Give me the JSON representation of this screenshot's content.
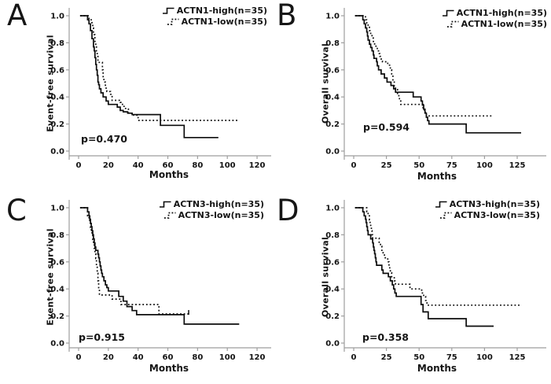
{
  "style": {
    "background": "#ffffff",
    "curve_color": "#0d0d0d",
    "axis_color": "#9e9e9e",
    "text_color": "#141414"
  },
  "chart_data": [
    {
      "panel": "A",
      "type": "line",
      "subtype": "kaplan-meier-step",
      "xlabel": "Months",
      "ylabel": "Event-free survival",
      "p_label": "p=0.470",
      "xlim": [
        0,
        120
      ],
      "ylim": [
        0.0,
        1.0
      ],
      "xticks": [
        0,
        20,
        40,
        60,
        80,
        100,
        120
      ],
      "ytick_labels": [
        "1.0",
        "0.8",
        "0.6",
        "0.4",
        "0.2",
        "0.0"
      ],
      "grid": false,
      "legend_position": "top-right",
      "series": [
        {
          "name": "ACTN1-high(n=35)",
          "line": "solid",
          "end": 94,
          "censors": [],
          "steps": [
            [
              1,
              1.0
            ],
            [
              6,
              0.97
            ],
            [
              7,
              0.94
            ],
            [
              8,
              0.89
            ],
            [
              9,
              0.83
            ],
            [
              10,
              0.77
            ],
            [
              10.5,
              0.74
            ],
            [
              11,
              0.69
            ],
            [
              11.5,
              0.64
            ],
            [
              12,
              0.6
            ],
            [
              12.5,
              0.56
            ],
            [
              13,
              0.51
            ],
            [
              13.5,
              0.49
            ],
            [
              14,
              0.46
            ],
            [
              15,
              0.43
            ],
            [
              16.5,
              0.4
            ],
            [
              18.5,
              0.37
            ],
            [
              20,
              0.345
            ],
            [
              26,
              0.325
            ],
            [
              28,
              0.3
            ],
            [
              30,
              0.29
            ],
            [
              33,
              0.28
            ],
            [
              36,
              0.27
            ],
            [
              55,
              0.19
            ],
            [
              71,
              0.1
            ]
          ]
        },
        {
          "name": "ACTN1-low(n=35)",
          "line": "dotted",
          "end": 108,
          "censors": [],
          "steps": [
            [
              1,
              1.0
            ],
            [
              7,
              0.97
            ],
            [
              9,
              0.94
            ],
            [
              9.5,
              0.91
            ],
            [
              10,
              0.86
            ],
            [
              11,
              0.8
            ],
            [
              11.5,
              0.77
            ],
            [
              12,
              0.74
            ],
            [
              12.5,
              0.71
            ],
            [
              13,
              0.655
            ],
            [
              16,
              0.6
            ],
            [
              16.5,
              0.55
            ],
            [
              17,
              0.51
            ],
            [
              18,
              0.48
            ],
            [
              18.5,
              0.455
            ],
            [
              19,
              0.44
            ],
            [
              21.5,
              0.42
            ],
            [
              22.5,
              0.375
            ],
            [
              28,
              0.36
            ],
            [
              29.5,
              0.33
            ],
            [
              31,
              0.315
            ],
            [
              33.5,
              0.28
            ],
            [
              37,
              0.265
            ],
            [
              40,
              0.227
            ]
          ]
        }
      ]
    },
    {
      "panel": "B",
      "type": "line",
      "subtype": "kaplan-meier-step",
      "xlabel": "Months",
      "ylabel": "Overall survival",
      "p_label": "p=0.594",
      "xlim": [
        0,
        125
      ],
      "ylim": [
        0.0,
        1.0
      ],
      "xticks": [
        0,
        25,
        50,
        75,
        100,
        125
      ],
      "ytick_labels": [
        "1.0",
        "0.8",
        "0.6",
        "0.4",
        "0.2",
        "0.0"
      ],
      "grid": false,
      "legend_position": "top-right",
      "series": [
        {
          "name": "ACTN1-high(n=35)",
          "line": "solid",
          "end": 128,
          "censors": [],
          "steps": [
            [
              1,
              1.0
            ],
            [
              7,
              0.97
            ],
            [
              8,
              0.94
            ],
            [
              9,
              0.91
            ],
            [
              10,
              0.88
            ],
            [
              10.5,
              0.85
            ],
            [
              11,
              0.82
            ],
            [
              12,
              0.79
            ],
            [
              13,
              0.765
            ],
            [
              14,
              0.74
            ],
            [
              15,
              0.71
            ],
            [
              15.5,
              0.685
            ],
            [
              17.5,
              0.66
            ],
            [
              18,
              0.63
            ],
            [
              19,
              0.6
            ],
            [
              21,
              0.57
            ],
            [
              23.5,
              0.54
            ],
            [
              25.5,
              0.51
            ],
            [
              28.5,
              0.485
            ],
            [
              30.5,
              0.46
            ],
            [
              32,
              0.435
            ],
            [
              45.5,
              0.4
            ],
            [
              51.5,
              0.37
            ],
            [
              52.5,
              0.34
            ],
            [
              53.5,
              0.31
            ],
            [
              54.5,
              0.28
            ],
            [
              55.5,
              0.25
            ],
            [
              56.5,
              0.225
            ],
            [
              57.5,
              0.2
            ],
            [
              86,
              0.135
            ]
          ]
        },
        {
          "name": "ACTN1-low(n=35)",
          "line": "dotted",
          "end": 107,
          "censors": [],
          "steps": [
            [
              1,
              1.0
            ],
            [
              9,
              0.97
            ],
            [
              10,
              0.94
            ],
            [
              11,
              0.915
            ],
            [
              12,
              0.89
            ],
            [
              13,
              0.86
            ],
            [
              14,
              0.835
            ],
            [
              15,
              0.81
            ],
            [
              16,
              0.785
            ],
            [
              17,
              0.765
            ],
            [
              18,
              0.74
            ],
            [
              19,
              0.72
            ],
            [
              20,
              0.7
            ],
            [
              21,
              0.68
            ],
            [
              22,
              0.66
            ],
            [
              26,
              0.635
            ],
            [
              28,
              0.6
            ],
            [
              29,
              0.565
            ],
            [
              30,
              0.52
            ],
            [
              31,
              0.48
            ],
            [
              32,
              0.455
            ],
            [
              33.5,
              0.42
            ],
            [
              34.5,
              0.395
            ],
            [
              35,
              0.37
            ],
            [
              36,
              0.345
            ],
            [
              53,
              0.31
            ],
            [
              54,
              0.285
            ],
            [
              55.5,
              0.26
            ]
          ]
        }
      ]
    },
    {
      "panel": "C",
      "type": "line",
      "subtype": "kaplan-meier-step",
      "xlabel": "Months",
      "ylabel": "Event-free survival",
      "p_label": "p=0.915",
      "xlim": [
        0,
        120
      ],
      "ylim": [
        0.0,
        1.0
      ],
      "xticks": [
        0,
        20,
        40,
        60,
        80,
        100,
        120
      ],
      "ytick_labels": [
        "1.0",
        "0.8",
        "0.6",
        "0.4",
        "0.2",
        "0.0"
      ],
      "grid": false,
      "legend_position": "top-right",
      "series": [
        {
          "name": "ACTN3-high(n=35)",
          "line": "solid",
          "end": 108,
          "censors": [],
          "steps": [
            [
              1,
              1.0
            ],
            [
              6,
              0.97
            ],
            [
              7,
              0.94
            ],
            [
              7.5,
              0.915
            ],
            [
              8,
              0.885
            ],
            [
              8.5,
              0.86
            ],
            [
              9,
              0.83
            ],
            [
              9.5,
              0.8
            ],
            [
              10,
              0.77
            ],
            [
              10.5,
              0.74
            ],
            [
              11,
              0.71
            ],
            [
              11.5,
              0.685
            ],
            [
              13,
              0.657
            ],
            [
              13.5,
              0.63
            ],
            [
              14,
              0.6
            ],
            [
              14.5,
              0.57
            ],
            [
              15,
              0.54
            ],
            [
              15.5,
              0.515
            ],
            [
              16,
              0.49
            ],
            [
              17,
              0.46
            ],
            [
              18,
              0.43
            ],
            [
              19,
              0.41
            ],
            [
              20,
              0.385
            ],
            [
              27,
              0.345
            ],
            [
              30,
              0.31
            ],
            [
              32.5,
              0.27
            ],
            [
              36,
              0.24
            ],
            [
              39,
              0.21
            ],
            [
              71,
              0.14
            ]
          ]
        },
        {
          "name": "ACTN3-low(n=35)",
          "line": "dotted",
          "end": 74,
          "censors": [
            [
              74,
              0.215
            ]
          ],
          "steps": [
            [
              1,
              1.0
            ],
            [
              6,
              0.94
            ],
            [
              7,
              0.915
            ],
            [
              7.5,
              0.885
            ],
            [
              8,
              0.855
            ],
            [
              8.5,
              0.825
            ],
            [
              9,
              0.795
            ],
            [
              9.5,
              0.765
            ],
            [
              10,
              0.735
            ],
            [
              10.5,
              0.7
            ],
            [
              11,
              0.66
            ],
            [
              11.5,
              0.625
            ],
            [
              12,
              0.575
            ],
            [
              12.5,
              0.515
            ],
            [
              13,
              0.46
            ],
            [
              13.5,
              0.41
            ],
            [
              14,
              0.355
            ],
            [
              22.5,
              0.325
            ],
            [
              28.5,
              0.285
            ],
            [
              54,
              0.215
            ]
          ]
        }
      ]
    },
    {
      "panel": "D",
      "type": "line",
      "subtype": "kaplan-meier-step",
      "xlabel": "Months",
      "ylabel": "Overall survival",
      "p_label": "p=0.358",
      "xlim": [
        0,
        125
      ],
      "ylim": [
        0.0,
        1.0
      ],
      "xticks": [
        0,
        25,
        50,
        75,
        100,
        125
      ],
      "ytick_labels": [
        "1.0",
        "0.8",
        "0.6",
        "0.4",
        "0.2",
        "0.0"
      ],
      "grid": false,
      "legend_position": "top-right",
      "series": [
        {
          "name": "ACTN3-high(n=35)",
          "line": "solid",
          "end": 107,
          "censors": [],
          "steps": [
            [
              1,
              1.0
            ],
            [
              7,
              0.97
            ],
            [
              8,
              0.94
            ],
            [
              9,
              0.915
            ],
            [
              9.5,
              0.89
            ],
            [
              10,
              0.86
            ],
            [
              10.5,
              0.83
            ],
            [
              11,
              0.8
            ],
            [
              13,
              0.77
            ],
            [
              14.5,
              0.74
            ],
            [
              15,
              0.71
            ],
            [
              15.5,
              0.685
            ],
            [
              16,
              0.66
            ],
            [
              16.5,
              0.63
            ],
            [
              17,
              0.6
            ],
            [
              17.5,
              0.575
            ],
            [
              21.5,
              0.54
            ],
            [
              22.5,
              0.515
            ],
            [
              26.5,
              0.49
            ],
            [
              28,
              0.46
            ],
            [
              29.5,
              0.43
            ],
            [
              30.5,
              0.4
            ],
            [
              31.5,
              0.37
            ],
            [
              32.5,
              0.345
            ],
            [
              51.5,
              0.285
            ],
            [
              53,
              0.23
            ],
            [
              57,
              0.18
            ],
            [
              86,
              0.125
            ]
          ]
        },
        {
          "name": "ACTN3-low(n=35)",
          "line": "dotted",
          "end": 127,
          "censors": [],
          "steps": [
            [
              1,
              1.0
            ],
            [
              10,
              0.97
            ],
            [
              11,
              0.94
            ],
            [
              12,
              0.91
            ],
            [
              12.5,
              0.885
            ],
            [
              13,
              0.86
            ],
            [
              13.5,
              0.83
            ],
            [
              14,
              0.8
            ],
            [
              14.5,
              0.775
            ],
            [
              19.5,
              0.745
            ],
            [
              20.5,
              0.715
            ],
            [
              21.5,
              0.685
            ],
            [
              22.5,
              0.66
            ],
            [
              23.5,
              0.63
            ],
            [
              26,
              0.6
            ],
            [
              27,
              0.57
            ],
            [
              27.5,
              0.545
            ],
            [
              28,
              0.52
            ],
            [
              29,
              0.49
            ],
            [
              31,
              0.46
            ],
            [
              32,
              0.435
            ],
            [
              43,
              0.4
            ],
            [
              52,
              0.37
            ],
            [
              53.5,
              0.345
            ],
            [
              55,
              0.315
            ],
            [
              56,
              0.28
            ]
          ]
        }
      ]
    }
  ]
}
